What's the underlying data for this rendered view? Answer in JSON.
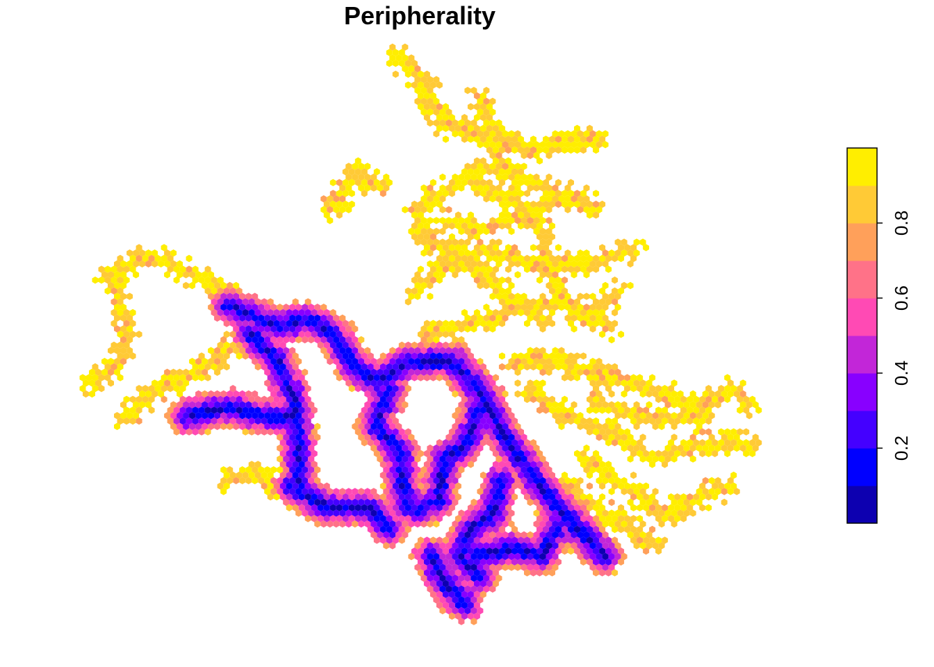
{
  "title": "Peripherality",
  "legend": {
    "ticks": [
      {
        "value": 0.2,
        "label": "0.2"
      },
      {
        "value": 0.4,
        "label": "0.4"
      },
      {
        "value": 0.6,
        "label": "0.6"
      },
      {
        "value": 0.8,
        "label": "0.8"
      }
    ],
    "range": [
      0.0,
      1.0
    ],
    "bins": [
      {
        "from": 0.0,
        "to": 0.1,
        "color": "#0d00b0"
      },
      {
        "from": 0.1,
        "to": 0.2,
        "color": "#0000ff"
      },
      {
        "from": 0.2,
        "to": 0.3,
        "color": "#4400ff"
      },
      {
        "from": 0.3,
        "to": 0.4,
        "color": "#8800ff"
      },
      {
        "from": 0.4,
        "to": 0.5,
        "color": "#c226d8"
      },
      {
        "from": 0.5,
        "to": 0.6,
        "color": "#ff4ab4"
      },
      {
        "from": 0.6,
        "to": 0.7,
        "color": "#ff7288"
      },
      {
        "from": 0.7,
        "to": 0.8,
        "color": "#ffa05a"
      },
      {
        "from": 0.8,
        "to": 0.9,
        "color": "#ffca36"
      },
      {
        "from": 0.9,
        "to": 1.0,
        "color": "#ffee00"
      }
    ]
  }
}
